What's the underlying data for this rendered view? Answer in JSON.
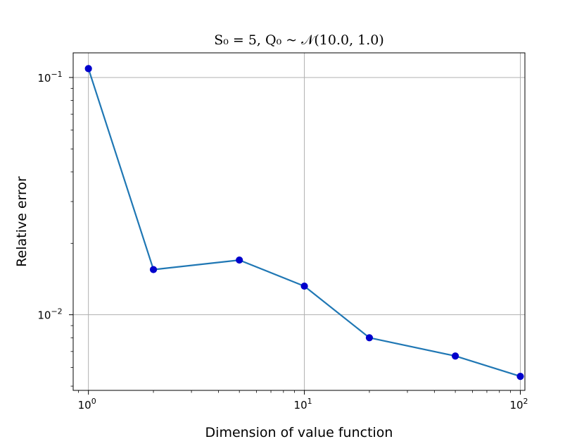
{
  "chart_data": {
    "type": "line",
    "title": "S₀ = 5,    Q₀ ~ 𝒩(10.0, 1.0)",
    "xlabel": "Dimension of value function",
    "ylabel": "Relative error",
    "xscale": "log",
    "yscale": "log",
    "xlim": [
      0.85,
      105
    ],
    "ylim": [
      0.0048,
      0.127
    ],
    "grid": true,
    "x_ticks": [
      {
        "value": 1,
        "base": "10",
        "exp": "0"
      },
      {
        "value": 10,
        "base": "10",
        "exp": "1"
      },
      {
        "value": 100,
        "base": "10",
        "exp": "2"
      }
    ],
    "y_ticks": [
      {
        "value": 0.01,
        "base": "10",
        "exp": "−2"
      },
      {
        "value": 0.1,
        "base": "10",
        "exp": "−1"
      }
    ],
    "series": [
      {
        "x": [
          1,
          2,
          5,
          10,
          20,
          50,
          100
        ],
        "y": [
          0.109,
          0.0155,
          0.017,
          0.0132,
          0.008,
          0.0067,
          0.0055
        ],
        "line_color": "#1f77b4",
        "marker_color": "#0000cc"
      }
    ]
  }
}
